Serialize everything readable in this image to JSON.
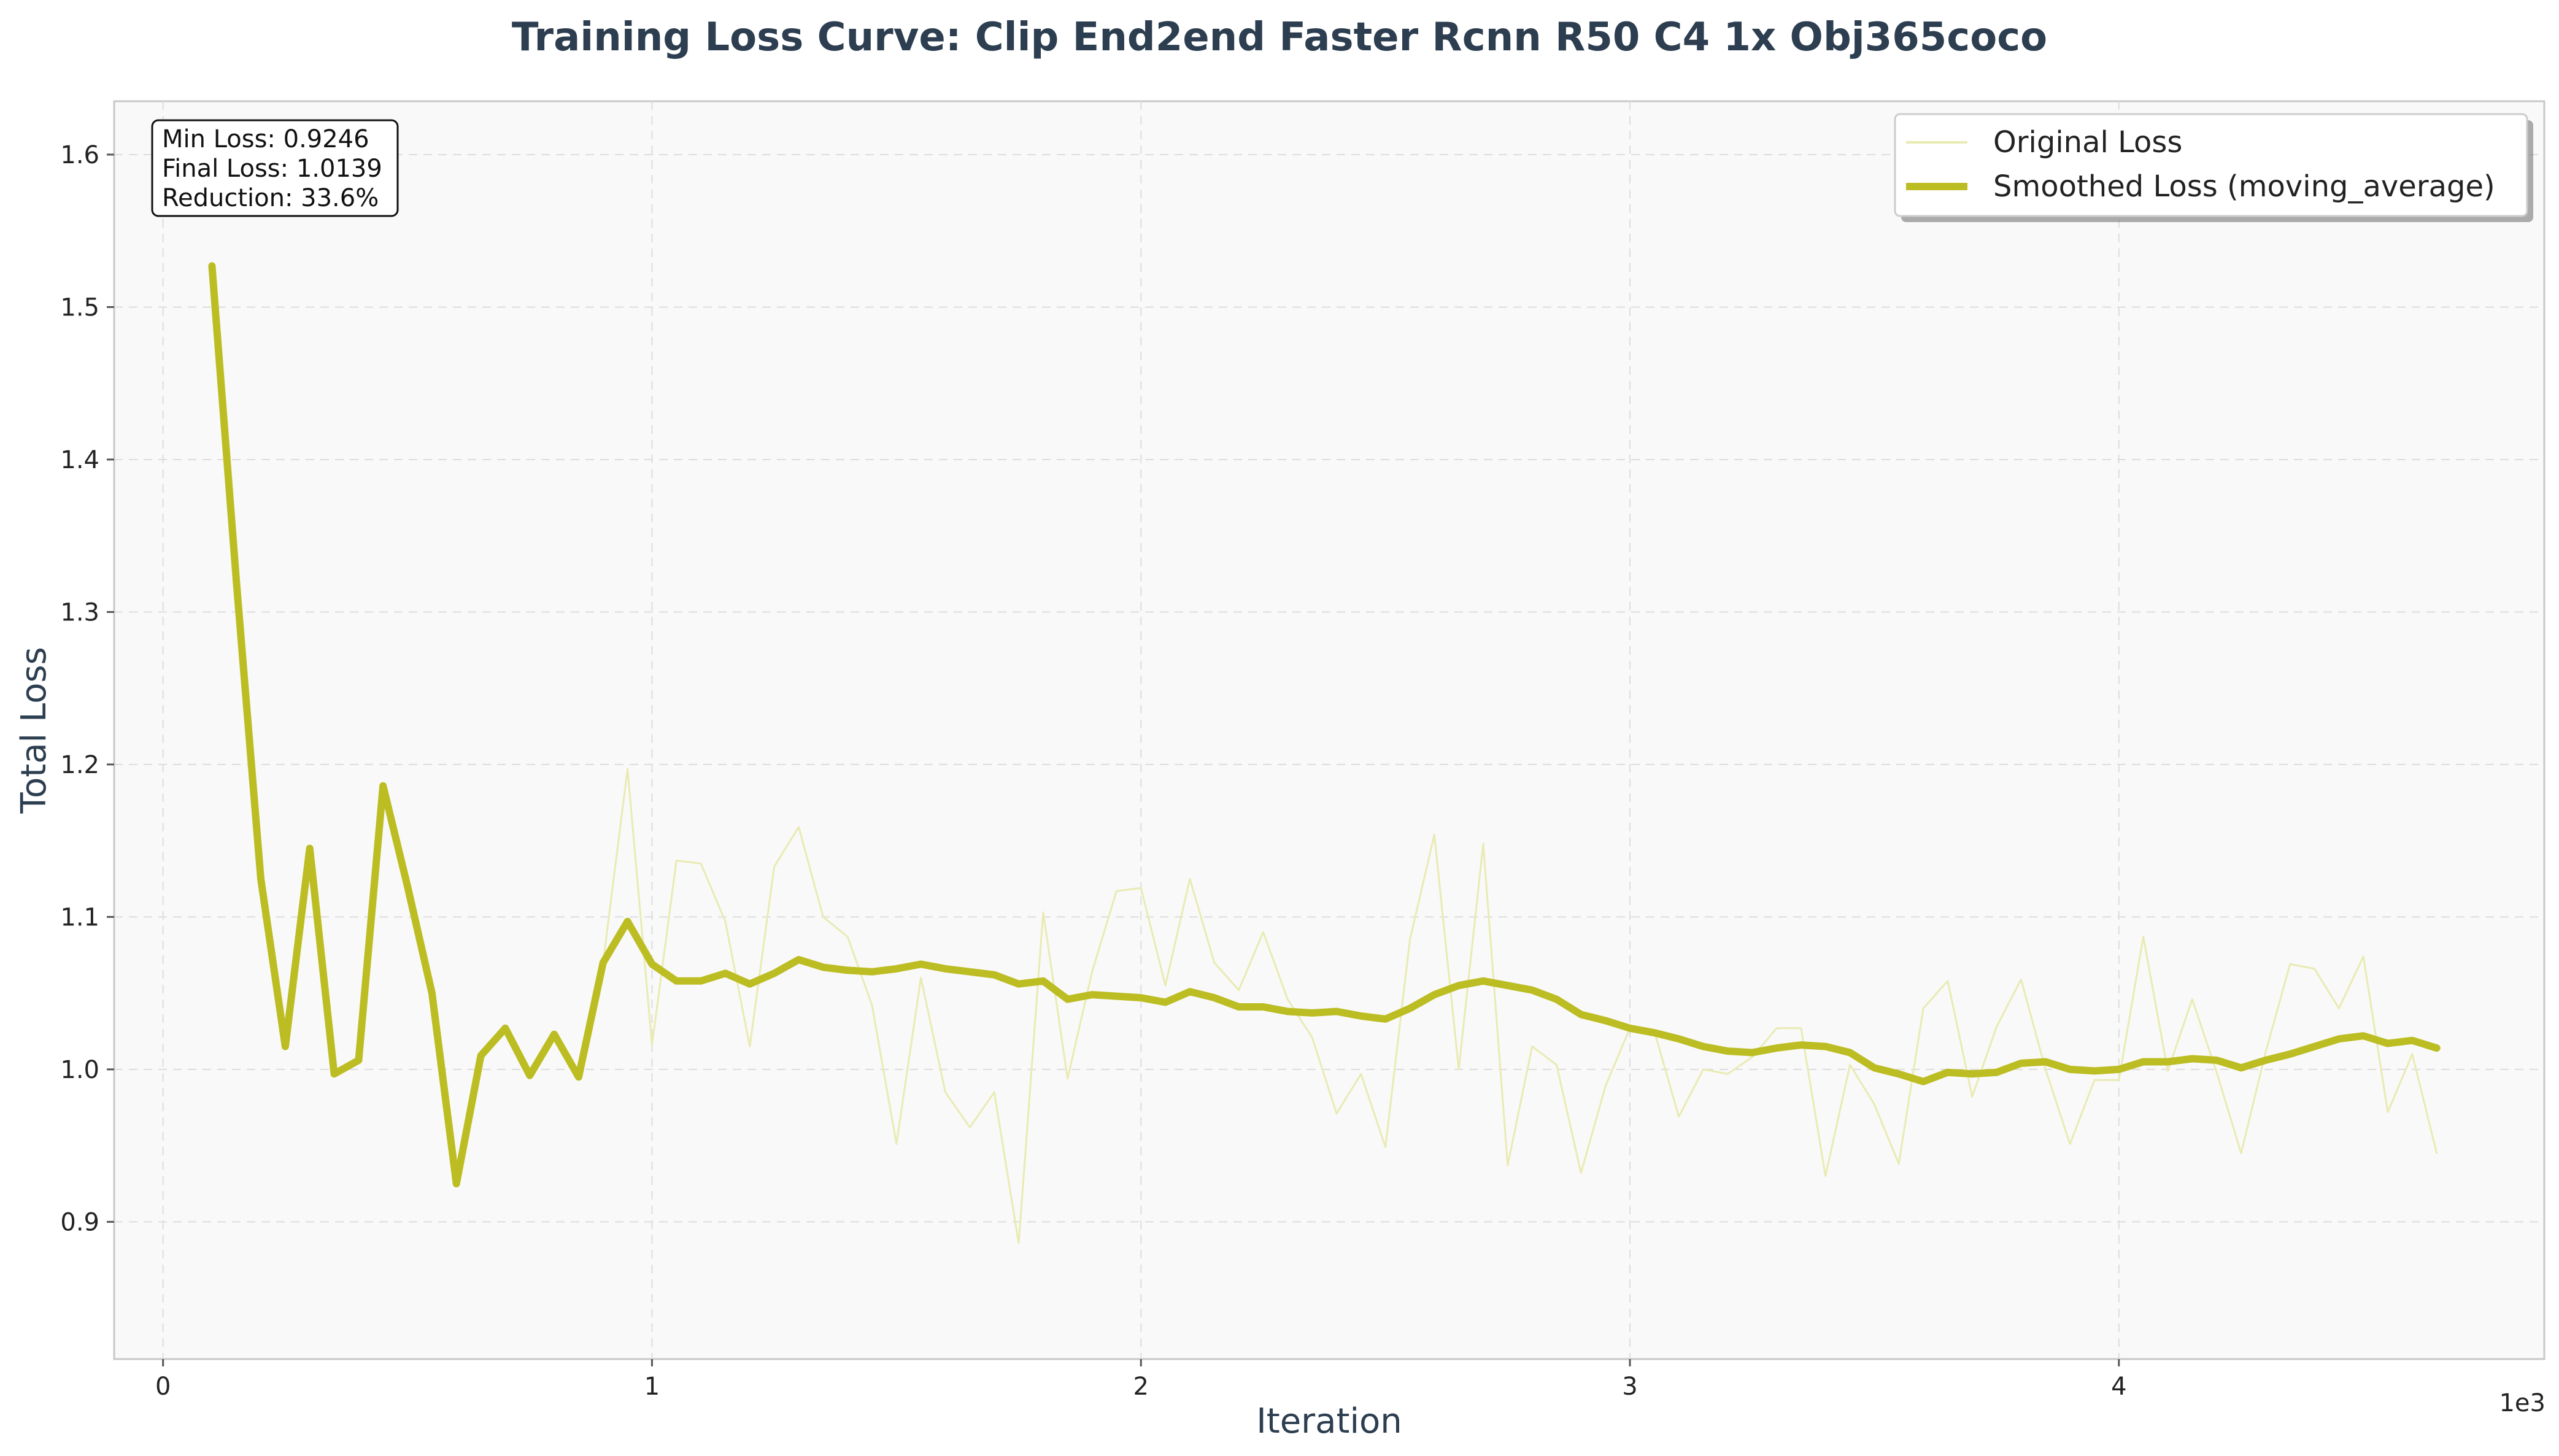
{
  "chart_data": {
    "type": "line",
    "title": "Training Loss Curve: Clip End2end Faster Rcnn R50 C4 1x Obj365coco",
    "xlabel": "Iteration",
    "ylabel": "Total Loss",
    "x_offset_label": "1e3",
    "xlim": [
      -100,
      4870
    ],
    "ylim": [
      0.81,
      1.635
    ],
    "x_ticks": [
      0,
      1000,
      2000,
      3000,
      4000
    ],
    "x_tick_labels": [
      "0",
      "1",
      "2",
      "3",
      "4"
    ],
    "y_ticks": [
      0.9,
      1.0,
      1.1,
      1.2,
      1.3,
      1.4,
      1.5,
      1.6
    ],
    "y_tick_labels": [
      "0.9",
      "1.0",
      "1.1",
      "1.2",
      "1.3",
      "1.4",
      "1.5",
      "1.6"
    ],
    "grid": true,
    "legend_position": "top-right",
    "x": [
      100,
      150,
      200,
      250,
      300,
      350,
      400,
      450,
      500,
      550,
      600,
      650,
      700,
      750,
      800,
      850,
      900,
      950,
      1000,
      1050,
      1100,
      1150,
      1200,
      1250,
      1300,
      1350,
      1400,
      1450,
      1500,
      1550,
      1600,
      1650,
      1700,
      1750,
      1800,
      1850,
      1900,
      1950,
      2000,
      2050,
      2100,
      2150,
      2200,
      2250,
      2300,
      2350,
      2400,
      2450,
      2500,
      2550,
      2600,
      2650,
      2700,
      2750,
      2800,
      2850,
      2900,
      2950,
      3000,
      3050,
      3100,
      3150,
      3200,
      3250,
      3300,
      3350,
      3400,
      3450,
      3500,
      3550,
      3600,
      3650,
      3700,
      3750,
      3800,
      3850,
      3900,
      3950,
      4000,
      4050,
      4100,
      4150,
      4200,
      4250,
      4300,
      4350,
      4400,
      4450,
      4500,
      4550,
      4600,
      4650
    ],
    "series": [
      {
        "name": "Original Loss",
        "color": "#e9ebb3",
        "values": [
          1.527,
          1.32,
          1.125,
          1.015,
          1.145,
          0.997,
          1.006,
          1.186,
          1.12,
          1.05,
          0.925,
          1.009,
          1.027,
          0.996,
          1.023,
          0.995,
          1.07,
          1.197,
          1.016,
          1.137,
          1.135,
          1.097,
          1.015,
          1.133,
          1.159,
          1.1,
          1.087,
          1.042,
          0.951,
          1.06,
          0.985,
          0.962,
          0.985,
          0.886,
          1.103,
          0.994,
          1.064,
          1.117,
          1.119,
          1.055,
          1.125,
          1.07,
          1.052,
          1.09,
          1.046,
          1.021,
          0.971,
          0.997,
          0.949,
          1.085,
          1.154,
          1.0,
          1.148,
          0.937,
          1.015,
          1.003,
          0.932,
          0.989,
          1.027,
          1.025,
          0.969,
          1.0,
          0.997,
          1.008,
          1.027,
          1.027,
          0.93,
          1.003,
          0.977,
          0.938,
          1.04,
          1.058,
          0.982,
          1.028,
          1.059,
          1.0,
          0.951,
          0.993,
          0.993,
          1.087,
          0.999,
          1.046,
          0.998,
          0.945,
          1.011,
          1.069,
          1.066,
          1.04,
          1.074,
          0.972,
          1.01,
          0.945
        ]
      },
      {
        "name": "Smoothed Loss (moving_average)",
        "color": "#bcbd22",
        "values": [
          1.527,
          1.32,
          1.125,
          1.015,
          1.145,
          0.997,
          1.006,
          1.186,
          1.12,
          1.05,
          0.925,
          1.009,
          1.027,
          0.996,
          1.023,
          0.995,
          1.07,
          1.097,
          1.069,
          1.058,
          1.058,
          1.063,
          1.056,
          1.063,
          1.072,
          1.067,
          1.065,
          1.064,
          1.066,
          1.069,
          1.066,
          1.064,
          1.062,
          1.056,
          1.058,
          1.046,
          1.049,
          1.048,
          1.047,
          1.044,
          1.051,
          1.047,
          1.041,
          1.041,
          1.038,
          1.037,
          1.038,
          1.035,
          1.033,
          1.04,
          1.049,
          1.055,
          1.058,
          1.055,
          1.052,
          1.046,
          1.036,
          1.032,
          1.027,
          1.024,
          1.02,
          1.015,
          1.012,
          1.011,
          1.014,
          1.016,
          1.015,
          1.011,
          1.001,
          0.997,
          0.992,
          0.998,
          0.997,
          0.998,
          1.004,
          1.005,
          1.0,
          0.999,
          1.0,
          1.005,
          1.005,
          1.007,
          1.006,
          1.001,
          1.006,
          1.01,
          1.015,
          1.02,
          1.022,
          1.017,
          1.019,
          1.014
        ]
      }
    ],
    "stats": {
      "min_loss": "Min Loss: 0.9246",
      "final_loss": "Final Loss: 1.0139",
      "reduction": "Reduction: 33.6%"
    }
  }
}
